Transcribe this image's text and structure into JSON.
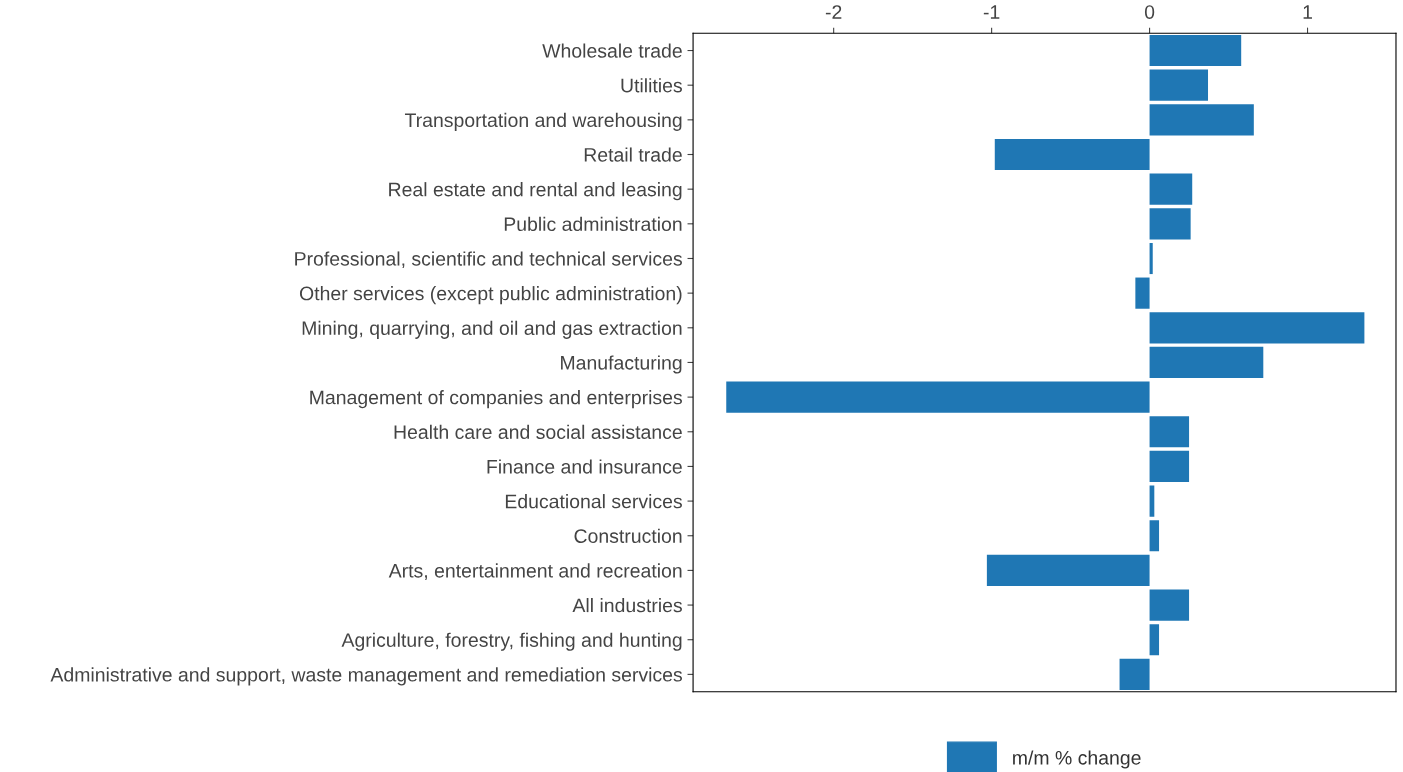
{
  "chart_data": {
    "type": "bar",
    "orientation": "horizontal",
    "categories": [
      "Wholesale trade",
      "Utilities",
      "Transportation and warehousing",
      "Retail trade",
      "Real estate and rental and leasing",
      "Public administration",
      "Professional, scientific and technical services",
      "Other services (except public administration)",
      "Mining, quarrying, and oil and gas extraction",
      "Manufacturing",
      "Management of companies and enterprises",
      "Health care and social assistance",
      "Finance and insurance",
      "Educational services",
      "Construction",
      "Arts, entertainment and recreation",
      "All industries",
      "Agriculture, forestry, fishing and hunting",
      "Administrative and support, waste management and remediation services"
    ],
    "series": [
      {
        "name": "m/m % change",
        "color": "#1f77b4",
        "values": [
          0.58,
          0.37,
          0.66,
          -0.98,
          0.27,
          0.26,
          0.02,
          -0.09,
          1.36,
          0.72,
          -2.68,
          0.25,
          0.25,
          0.03,
          0.06,
          -1.03,
          0.25,
          0.06,
          -0.19
        ]
      }
    ],
    "xlim": [
      -2.89,
      1.56
    ],
    "xticks": [
      -2,
      -1,
      0,
      1
    ],
    "grid": false,
    "legend": "bottom"
  }
}
